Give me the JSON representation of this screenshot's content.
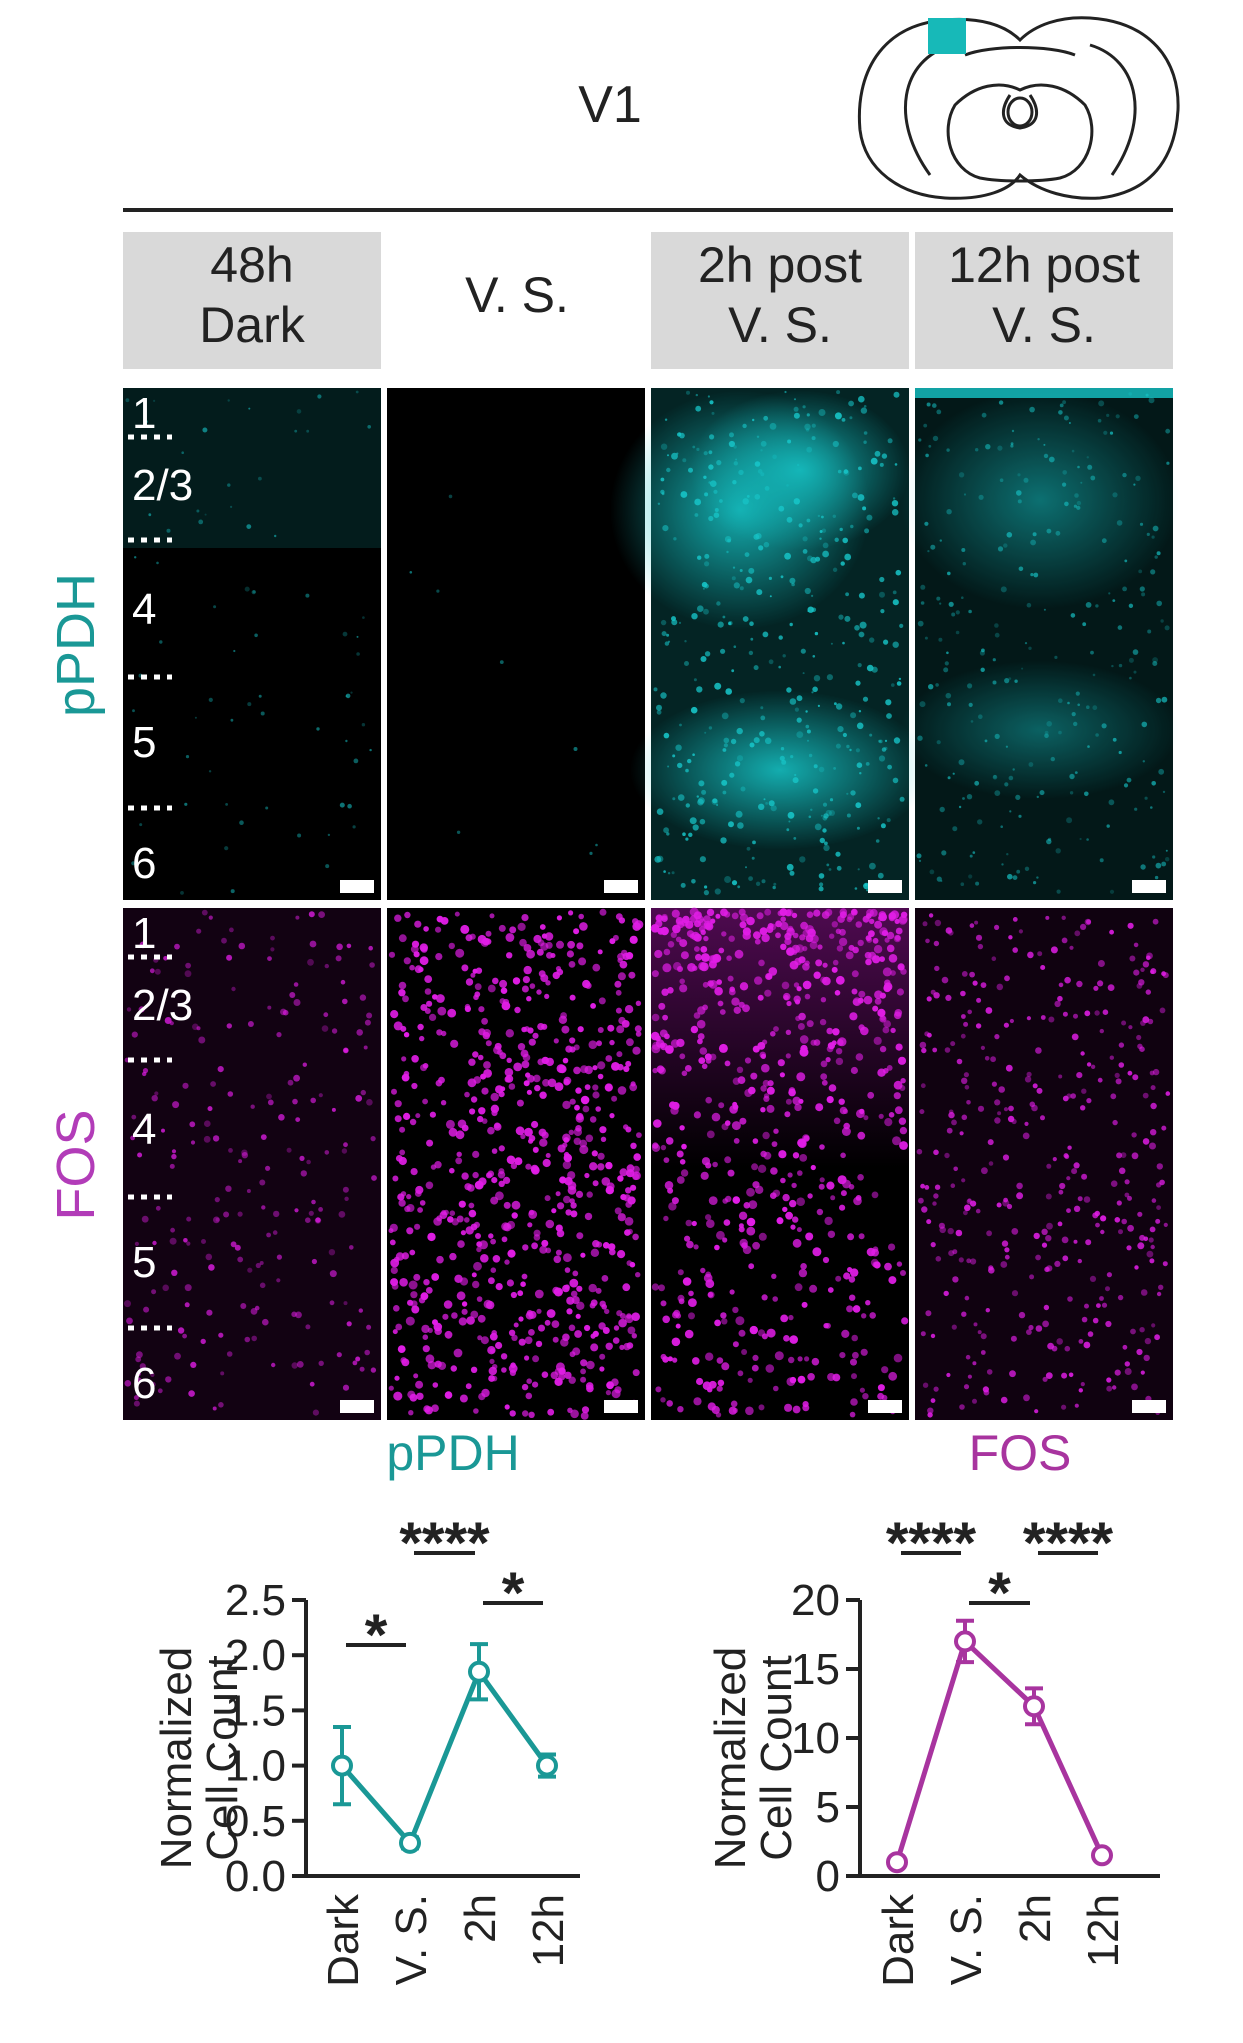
{
  "region_title": "V1",
  "atlas_icon": "coronal-brain-section-icon",
  "conditions": [
    {
      "line1": "48h",
      "line2": "Dark"
    },
    {
      "line1": "",
      "line2": "V. S."
    },
    {
      "line1": "2h post",
      "line2": "V. S."
    },
    {
      "line1": "12h post",
      "line2": "V. S."
    }
  ],
  "rows": [
    {
      "label": "pPDH",
      "color": "#17c5c8",
      "text_color": "#1a9896"
    },
    {
      "label": "FOS",
      "color": "#e11de6",
      "text_color": "#b23cb8"
    }
  ],
  "cortical_layers": [
    "1",
    "2/3",
    "4",
    "5",
    "6"
  ],
  "colors": {
    "ppdh": "#1a9896",
    "fos": "#a8349f",
    "ppdh_signal": "#17c5c8",
    "fos_signal": "#e11de6"
  },
  "chart_data": [
    {
      "type": "line",
      "title": "pPDH",
      "ylabel": "Normalized Cell Count",
      "categories": [
        "Dark",
        "V. S.",
        "2h",
        "12h"
      ],
      "values": [
        1.0,
        0.3,
        1.85,
        1.0
      ],
      "error": [
        0.35,
        0.05,
        0.25,
        0.1
      ],
      "ylim": [
        0,
        2.5
      ],
      "yticks": [
        0.0,
        0.5,
        1.0,
        1.5,
        2.0,
        2.5
      ],
      "ytick_labels": [
        "0.0",
        "0.5",
        "1.0",
        "1.5",
        "2.0",
        "2.5"
      ],
      "significance": [
        {
          "from": 0,
          "to": 1,
          "label": "*"
        },
        {
          "from": 1,
          "to": 2,
          "label": "****"
        },
        {
          "from": 2,
          "to": 3,
          "label": "*"
        }
      ]
    },
    {
      "type": "line",
      "title": "FOS",
      "ylabel": "Normalized Cell Count",
      "categories": [
        "Dark",
        "V. S.",
        "2h",
        "12h"
      ],
      "values": [
        1.0,
        17.0,
        12.3,
        1.5
      ],
      "error": [
        0.2,
        1.5,
        1.3,
        0.2
      ],
      "ylim": [
        0,
        20
      ],
      "yticks": [
        0,
        5,
        10,
        15,
        20
      ],
      "ytick_labels": [
        "0",
        "5",
        "10",
        "15",
        "20"
      ],
      "significance": [
        {
          "from": 0,
          "to": 1,
          "label": "****"
        },
        {
          "from": 1,
          "to": 2,
          "label": "*"
        },
        {
          "from": 2,
          "to": 3,
          "label": "****"
        }
      ]
    }
  ]
}
